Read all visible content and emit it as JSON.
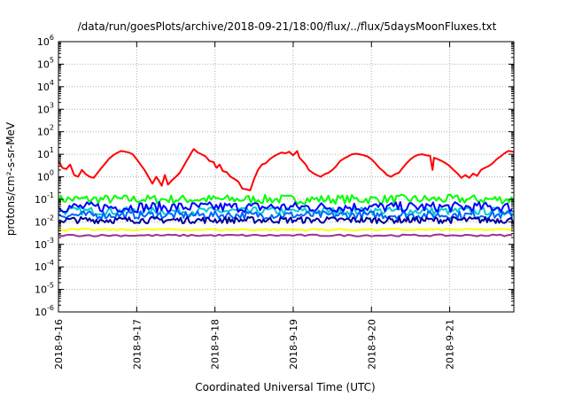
{
  "chart_data": {
    "type": "line",
    "title": "/data/run/goesPlots/archive/2018-09-21/18:00/flux/../flux/5daysMoonFluxes.txt",
    "xlabel": "Coordinated Universal Time (UTC)",
    "ylabel": "protons/cm²-s-sr-MeV",
    "yscale": "log",
    "ylim": [
      1e-06,
      1000000.0
    ],
    "ytick_exponents": [
      -6,
      -5,
      -4,
      -3,
      -2,
      -1,
      0,
      1,
      2,
      3,
      4,
      5,
      6
    ],
    "xlim": [
      0,
      5.82
    ],
    "x_unit": "days since 2018-9-16 00:00 UTC",
    "xticks": [
      {
        "x": 0,
        "label": "2018-9-16"
      },
      {
        "x": 1,
        "label": "2018-9-17"
      },
      {
        "x": 2,
        "label": "2018-9-18"
      },
      {
        "x": 3,
        "label": "2018-9-19"
      },
      {
        "x": 4,
        "label": "2018-9-20"
      },
      {
        "x": 5,
        "label": "2018-9-21"
      }
    ],
    "grid": true,
    "legend": "none",
    "series": [
      {
        "color": "#ff0000",
        "points": [
          [
            0.0,
            5
          ],
          [
            0.05,
            2.5
          ],
          [
            0.1,
            2.2
          ],
          [
            0.15,
            3.5
          ],
          [
            0.2,
            1.2
          ],
          [
            0.25,
            1.0
          ],
          [
            0.3,
            2.0
          ],
          [
            0.35,
            1.3
          ],
          [
            0.4,
            1.0
          ],
          [
            0.45,
            0.9
          ],
          [
            0.5,
            1.5
          ],
          [
            0.55,
            2.5
          ],
          [
            0.6,
            4.0
          ],
          [
            0.65,
            6.5
          ],
          [
            0.7,
            9.0
          ],
          [
            0.75,
            11.5
          ],
          [
            0.8,
            14
          ],
          [
            0.85,
            13
          ],
          [
            0.9,
            12
          ],
          [
            0.95,
            10
          ],
          [
            1.0,
            6
          ],
          [
            1.05,
            3.5
          ],
          [
            1.1,
            2.0
          ],
          [
            1.15,
            1.0
          ],
          [
            1.2,
            0.5
          ],
          [
            1.25,
            1.0
          ],
          [
            1.28,
            0.7
          ],
          [
            1.32,
            0.4
          ],
          [
            1.36,
            1.2
          ],
          [
            1.4,
            0.45
          ],
          [
            1.45,
            0.7
          ],
          [
            1.5,
            1.0
          ],
          [
            1.55,
            1.5
          ],
          [
            1.6,
            3.0
          ],
          [
            1.65,
            6.0
          ],
          [
            1.7,
            12
          ],
          [
            1.73,
            17
          ],
          [
            1.78,
            12
          ],
          [
            1.83,
            10
          ],
          [
            1.88,
            8
          ],
          [
            1.93,
            5
          ],
          [
            1.98,
            4.5
          ],
          [
            2.02,
            2.5
          ],
          [
            2.06,
            3.5
          ],
          [
            2.1,
            1.8
          ],
          [
            2.15,
            1.6
          ],
          [
            2.2,
            1.0
          ],
          [
            2.25,
            0.8
          ],
          [
            2.3,
            0.6
          ],
          [
            2.35,
            0.3
          ],
          [
            2.4,
            0.28
          ],
          [
            2.45,
            0.25
          ],
          [
            2.5,
            0.8
          ],
          [
            2.55,
            2.0
          ],
          [
            2.6,
            3.5
          ],
          [
            2.65,
            4.0
          ],
          [
            2.7,
            6.0
          ],
          [
            2.75,
            8.0
          ],
          [
            2.8,
            10
          ],
          [
            2.85,
            12
          ],
          [
            2.9,
            11
          ],
          [
            2.95,
            13
          ],
          [
            3.0,
            9
          ],
          [
            3.05,
            14
          ],
          [
            3.08,
            7
          ],
          [
            3.12,
            5
          ],
          [
            3.16,
            3.5
          ],
          [
            3.2,
            2.0
          ],
          [
            3.25,
            1.5
          ],
          [
            3.3,
            1.2
          ],
          [
            3.35,
            1.0
          ],
          [
            3.4,
            1.3
          ],
          [
            3.45,
            1.5
          ],
          [
            3.5,
            2.0
          ],
          [
            3.55,
            3.0
          ],
          [
            3.6,
            5.0
          ],
          [
            3.65,
            6.5
          ],
          [
            3.7,
            8.0
          ],
          [
            3.75,
            10
          ],
          [
            3.8,
            10.5
          ],
          [
            3.85,
            10
          ],
          [
            3.9,
            9
          ],
          [
            3.95,
            8
          ],
          [
            4.0,
            6
          ],
          [
            4.05,
            4
          ],
          [
            4.1,
            2.5
          ],
          [
            4.15,
            1.8
          ],
          [
            4.2,
            1.2
          ],
          [
            4.25,
            1.0
          ],
          [
            4.3,
            1.3
          ],
          [
            4.35,
            1.5
          ],
          [
            4.4,
            2.5
          ],
          [
            4.45,
            4.0
          ],
          [
            4.5,
            6.0
          ],
          [
            4.55,
            8.0
          ],
          [
            4.6,
            9.5
          ],
          [
            4.65,
            10
          ],
          [
            4.7,
            9
          ],
          [
            4.75,
            8.5
          ],
          [
            4.78,
            2.0
          ],
          [
            4.8,
            7
          ],
          [
            4.85,
            6
          ],
          [
            4.9,
            5
          ],
          [
            4.95,
            4
          ],
          [
            5.0,
            3
          ],
          [
            5.05,
            2.0
          ],
          [
            5.1,
            1.4
          ],
          [
            5.15,
            0.9
          ],
          [
            5.2,
            1.2
          ],
          [
            5.25,
            0.9
          ],
          [
            5.3,
            1.4
          ],
          [
            5.35,
            1.1
          ],
          [
            5.4,
            2.0
          ],
          [
            5.45,
            2.5
          ],
          [
            5.5,
            3.0
          ],
          [
            5.55,
            4.0
          ],
          [
            5.6,
            6.0
          ],
          [
            5.65,
            8.0
          ],
          [
            5.7,
            11
          ],
          [
            5.75,
            14
          ],
          [
            5.82,
            13
          ]
        ]
      },
      {
        "color": "#00ff00",
        "base": 0.1,
        "amplitude": 1.6,
        "period": 0.03
      },
      {
        "color": "#00cccc",
        "base": 0.03,
        "amplitude": 1.5,
        "period": 0.03
      },
      {
        "color": "#0000ff",
        "base": 0.045,
        "amplitude": 1.7,
        "period": 0.028
      },
      {
        "color": "#0066ff",
        "base": 0.02,
        "amplitude": 1.5,
        "period": 0.025
      },
      {
        "color": "#000099",
        "base": 0.012,
        "amplitude": 1.4,
        "period": 0.022
      },
      {
        "color": "#ffff00",
        "base": 0.0045,
        "amplitude": 1.1,
        "period": 0.05
      },
      {
        "color": "#993399",
        "base": 0.0025,
        "amplitude": 1.1,
        "period": 0.05
      }
    ]
  }
}
